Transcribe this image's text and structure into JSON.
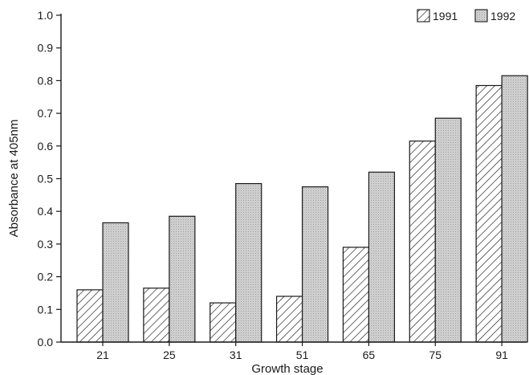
{
  "chart_data": {
    "type": "bar",
    "title": "",
    "xlabel": "Growth stage",
    "ylabel": "Absorbance at 405nm",
    "categories": [
      "21",
      "25",
      "31",
      "51",
      "65",
      "75",
      "91"
    ],
    "yticks": [
      "0.0",
      "0.1",
      "0.2",
      "0.3",
      "0.4",
      "0.5",
      "0.6",
      "0.7",
      "0.8",
      "0.9",
      "1.0"
    ],
    "ylim": [
      0,
      1.0
    ],
    "grid": false,
    "legend_position": "top-right",
    "series": [
      {
        "name": "1991",
        "pattern": "diagonal-hatch",
        "values": [
          0.16,
          0.165,
          0.12,
          0.14,
          0.29,
          0.615,
          0.785
        ]
      },
      {
        "name": "1992",
        "pattern": "grey-stipple",
        "values": [
          0.365,
          0.385,
          0.485,
          0.475,
          0.52,
          0.685,
          0.815
        ]
      }
    ]
  }
}
